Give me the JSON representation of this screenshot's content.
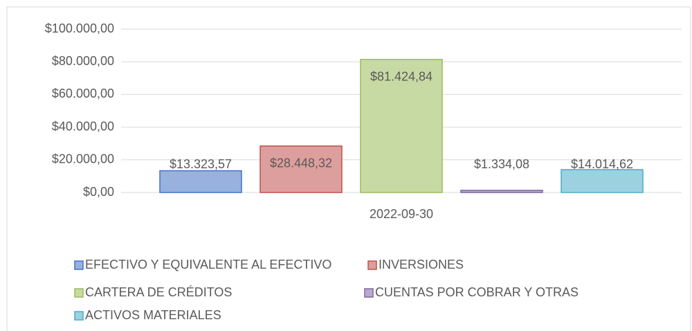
{
  "chart_data": {
    "type": "bar",
    "categories": [
      "2022-09-30"
    ],
    "series": [
      {
        "name": "EFECTIVO Y EQUIVALENTE AL EFECTIVO",
        "color": "#4472c4",
        "values": [
          13323.57
        ],
        "value_labels": [
          "$13.323,57"
        ]
      },
      {
        "name": "INVERSIONES",
        "color": "#c0504d",
        "values": [
          28448.32
        ],
        "value_labels": [
          "$28.448,32"
        ]
      },
      {
        "name": "CARTERA DE CRÉDITOS",
        "color": "#9bbb59",
        "values": [
          81424.84
        ],
        "value_labels": [
          "$81.424,84"
        ]
      },
      {
        "name": "CUENTAS POR COBRAR Y OTRAS",
        "color": "#8064a2",
        "values": [
          1334.08
        ],
        "value_labels": [
          "$1.334,08"
        ]
      },
      {
        "name": "ACTIVOS MATERIALES",
        "color": "#4bacc6",
        "values": [
          14014.62
        ],
        "value_labels": [
          "$14.014,62"
        ]
      }
    ],
    "ylim": [
      0,
      100000
    ],
    "yticks": [
      {
        "value": 0,
        "label": "$0,00"
      },
      {
        "value": 20000,
        "label": "$20.000,00"
      },
      {
        "value": 40000,
        "label": "$40.000,00"
      },
      {
        "value": 60000,
        "label": "$60.000,00"
      },
      {
        "value": 80000,
        "label": "$80.000,00"
      },
      {
        "value": 100000,
        "label": "$100.000,00"
      }
    ],
    "grid": true,
    "legend": "bottom"
  }
}
